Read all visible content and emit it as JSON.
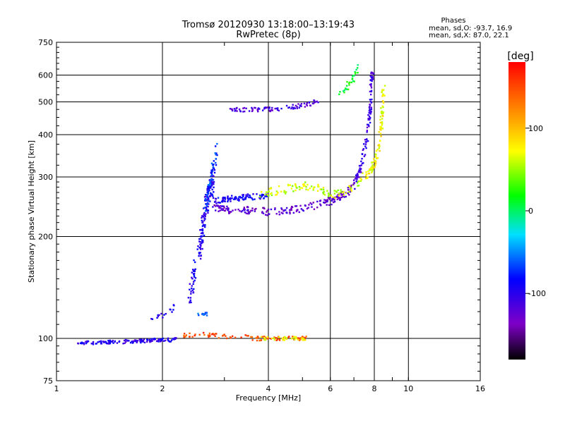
{
  "chart_data": {
    "type": "scatter",
    "title": "Tromsø 20120930 13:18:00–13:19:43",
    "subtitle": "RwPretec (8p)",
    "xlabel": "Frequency [MHz]",
    "ylabel": "Stationary phase Virtual Height [km]",
    "x_scale": "log",
    "y_scale": "log",
    "xlim": [
      1,
      16
    ],
    "ylim": [
      75,
      750
    ],
    "x_ticks": [
      1,
      2,
      4,
      6,
      8,
      10,
      16
    ],
    "y_ticks": [
      75,
      100,
      200,
      300,
      400,
      500,
      600,
      750
    ],
    "grid": true,
    "phase_stats": {
      "heading": "Phases",
      "line_o": "mean, sd,O: -93.7, 16.9",
      "line_x": "mean, sd,X:  87.0, 22.1"
    },
    "colorbar": {
      "label": "[deg]",
      "range": [
        -180,
        180
      ],
      "ticks": [
        100,
        0,
        -100
      ],
      "colormap": "rainbow"
    },
    "traces": [
      {
        "x": [
          1.15,
          1.2,
          1.3,
          1.4,
          1.5,
          1.6,
          1.7,
          1.8,
          1.9,
          2.0,
          2.1,
          2.2
        ],
        "y": [
          97,
          97,
          97,
          97.5,
          97.5,
          98,
          98,
          98.5,
          99,
          99,
          99,
          100
        ],
        "phase": -100,
        "spread": 1.2,
        "n": 140
      },
      {
        "x": [
          2.3,
          2.5,
          2.8,
          3.1,
          3.4,
          3.7,
          4.0,
          4.3,
          4.6,
          4.9,
          5.1
        ],
        "y": [
          102,
          103,
          102,
          101,
          101,
          100,
          100,
          100,
          100,
          100,
          100
        ],
        "phase": 150,
        "spread": 1.5,
        "n": 90
      },
      {
        "x": [
          3.8,
          4.1,
          4.4,
          4.7,
          5.0,
          5.1
        ],
        "y": [
          100,
          100,
          100,
          100,
          100,
          100
        ],
        "phase": 70,
        "spread": 1.2,
        "n": 35
      },
      {
        "x": [
          2.35,
          2.45,
          2.55,
          2.6,
          2.65,
          2.7,
          2.75,
          2.8
        ],
        "y": [
          130,
          150,
          180,
          210,
          240,
          260,
          280,
          300
        ],
        "phase": -95,
        "spread": 8,
        "n": 180
      },
      {
        "x": [
          2.65,
          2.7,
          2.75,
          2.8,
          2.85
        ],
        "y": [
          240,
          270,
          300,
          330,
          370
        ],
        "phase": -70,
        "spread": 5,
        "n": 50
      },
      {
        "x": [
          2.8,
          3.0,
          3.3,
          3.6,
          4.0,
          4.5,
          5.0,
          5.5,
          6.0,
          6.5,
          7.0
        ],
        "y": [
          242,
          240,
          240,
          238,
          237,
          238,
          242,
          248,
          255,
          265,
          280
        ],
        "phase": -125,
        "spread": 2.5,
        "n": 200
      },
      {
        "x": [
          2.8,
          3.0,
          3.2,
          3.5,
          3.8,
          4.0
        ],
        "y": [
          255,
          258,
          260,
          262,
          262,
          262
        ],
        "phase": -90,
        "spread": 2,
        "n": 90
      },
      {
        "x": [
          3.8,
          4.2,
          4.6,
          5.0,
          5.4,
          5.8,
          6.2,
          6.8,
          7.5
        ],
        "y": [
          268,
          272,
          278,
          282,
          280,
          272,
          265,
          275,
          300
        ],
        "phase": 60,
        "spread": 3,
        "n": 110
      },
      {
        "x": [
          7.0,
          7.3,
          7.5,
          7.7,
          7.8,
          7.85,
          7.9
        ],
        "y": [
          280,
          320,
          360,
          420,
          480,
          560,
          620
        ],
        "phase": -110,
        "spread": 2.5,
        "n": 110
      },
      {
        "x": [
          7.6,
          7.9,
          8.1,
          8.3,
          8.4,
          8.5
        ],
        "y": [
          300,
          320,
          340,
          380,
          450,
          550
        ],
        "phase": 75,
        "spread": 2.5,
        "n": 100
      },
      {
        "x": [
          3.1,
          3.4,
          3.7,
          4.0,
          4.4,
          4.8,
          5.2,
          5.6
        ],
        "y": [
          470,
          475,
          475,
          475,
          478,
          485,
          492,
          510
        ],
        "phase": -115,
        "spread": 1.5,
        "n": 90
      },
      {
        "x": [
          6.4,
          6.7,
          7.0,
          7.2
        ],
        "y": [
          520,
          555,
          590,
          640
        ],
        "phase": 10,
        "spread": 2,
        "n": 30
      },
      {
        "x": [
          1.8,
          1.9,
          2.0,
          2.1,
          2.15
        ],
        "y": [
          112,
          115,
          118,
          120,
          125
        ],
        "phase": -95,
        "spread": 2,
        "n": 16
      },
      {
        "x": [
          2.5,
          2.6,
          2.7
        ],
        "y": [
          118,
          118,
          118
        ],
        "phase": -60,
        "spread": 1,
        "n": 14
      }
    ]
  }
}
